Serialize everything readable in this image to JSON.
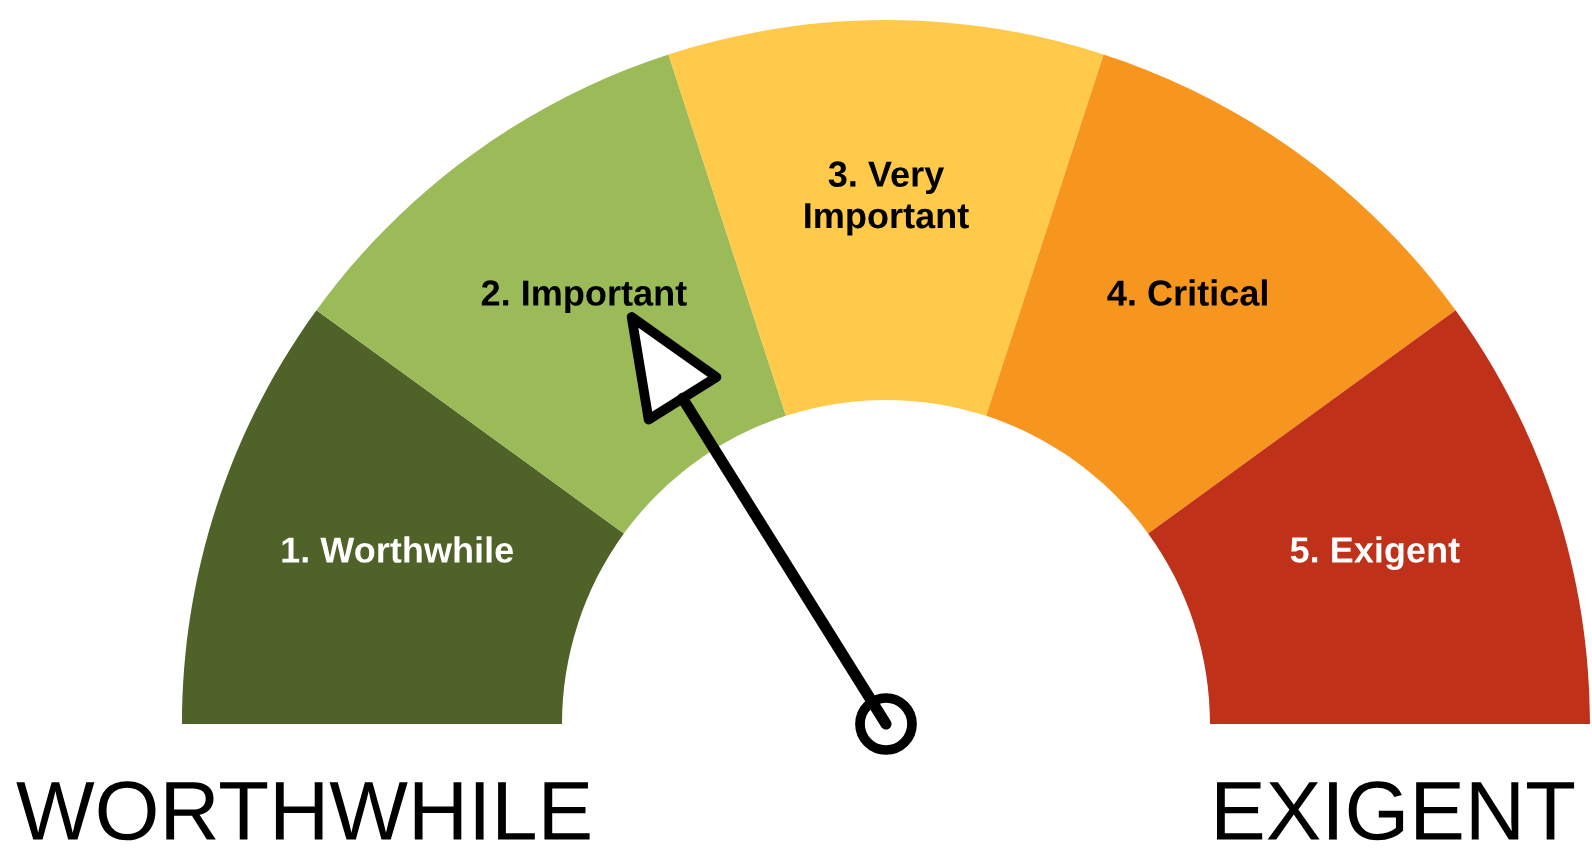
{
  "chart_data": {
    "type": "donut",
    "categories": [
      "1. Worthwhile",
      "2. Important",
      "3. Very\nImportant",
      "4. Critical",
      "5. Exigent"
    ],
    "values": [
      20,
      20,
      20,
      20,
      20
    ],
    "colors": [
      "#4f6228",
      "#9bbb59",
      "#ffc94a",
      "#f7961e",
      "#c0311a"
    ],
    "needle": "2. Important",
    "annotations": [
      "WORTHWHILE",
      "EXIGENT"
    ]
  }
}
